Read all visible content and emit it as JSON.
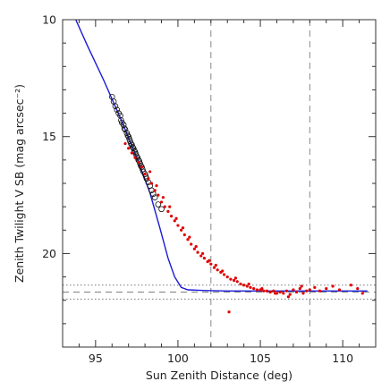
{
  "chart_data": {
    "type": "scatter",
    "xlabel": "Sun Zenith Distance (deg)",
    "ylabel": "Zenith Twilight V SB (mag arcsec⁻²)",
    "xlim": [
      93,
      112
    ],
    "ylim": [
      24,
      10
    ],
    "y_inverted": true,
    "x_ticks": [
      95,
      100,
      105,
      110
    ],
    "y_ticks": [
      10,
      15,
      20
    ],
    "grid": false,
    "vertical_reference_lines": [
      102,
      108
    ],
    "horizontal_reference_lines": [
      {
        "y": 21.35,
        "style": "dotted"
      },
      {
        "y": 21.65,
        "style": "dashed"
      },
      {
        "y": 21.95,
        "style": "dotted"
      }
    ],
    "series": [
      {
        "kind": "model_line",
        "color": "#1a1ad6",
        "x": [
          93.8,
          94.5,
          95.5,
          96.5,
          97.5,
          98.3,
          98.9,
          99.4,
          99.8,
          100.2,
          100.6,
          101.5,
          103,
          106,
          111.5
        ],
        "y": [
          10.0,
          11.1,
          12.6,
          14.2,
          15.9,
          17.4,
          18.9,
          20.2,
          21.0,
          21.45,
          21.55,
          21.58,
          21.6,
          21.6,
          21.6
        ]
      },
      {
        "kind": "open_circles",
        "color": "#111111",
        "x": [
          96.0,
          96.1,
          96.2,
          96.3,
          96.4,
          96.5,
          96.55,
          96.6,
          96.7,
          96.75,
          96.8,
          96.9,
          96.95,
          97.0,
          97.05,
          97.1,
          97.15,
          97.2,
          97.25,
          97.3,
          97.35,
          97.4,
          97.45,
          97.5,
          97.55,
          97.6,
          97.65,
          97.7,
          97.75,
          97.8,
          97.85,
          97.9,
          98.0,
          98.05,
          98.1,
          98.2,
          98.3,
          98.4,
          98.5,
          98.6,
          98.8,
          99.0
        ],
        "y": [
          13.3,
          13.5,
          13.7,
          13.85,
          14.0,
          14.1,
          14.3,
          14.4,
          14.5,
          14.65,
          14.7,
          14.85,
          14.95,
          15.0,
          15.1,
          15.2,
          15.3,
          15.35,
          15.45,
          15.5,
          15.6,
          15.65,
          15.75,
          15.85,
          15.9,
          16.0,
          16.05,
          16.15,
          16.25,
          16.3,
          16.4,
          16.5,
          16.6,
          16.7,
          16.8,
          16.95,
          17.1,
          17.3,
          17.45,
          17.6,
          17.9,
          18.1
        ]
      },
      {
        "kind": "filled_dots",
        "color": "#e00000",
        "x": [
          96.8,
          97.0,
          97.2,
          97.4,
          97.6,
          97.8,
          98.0,
          98.2,
          98.4,
          98.6,
          98.8,
          99.0,
          99.2,
          99.4,
          99.6,
          99.8,
          100.0,
          100.2,
          100.4,
          100.6,
          100.8,
          101.0,
          101.2,
          101.4,
          101.6,
          101.8,
          102.0,
          102.2,
          102.4,
          102.6,
          102.8,
          103.0,
          103.2,
          103.4,
          103.6,
          103.8,
          104.0,
          104.2,
          104.4,
          104.6,
          104.8,
          105.0,
          105.2,
          105.4,
          105.6,
          105.8,
          106.0,
          106.2,
          106.4,
          106.6,
          106.8,
          107.0,
          107.2,
          107.4,
          107.6,
          107.8,
          108.0,
          108.3,
          108.6,
          109.0,
          109.4,
          109.8,
          110.5,
          110.9,
          111.2,
          103.1,
          98.3,
          98.7,
          99.1,
          99.5,
          99.9,
          100.3,
          100.7,
          101.1,
          101.5,
          101.9,
          102.3,
          102.7,
          103.5,
          104.3,
          105.1,
          105.9,
          106.7,
          107.5
        ],
        "y": [
          15.3,
          15.5,
          15.7,
          15.9,
          16.1,
          16.3,
          16.6,
          16.8,
          17.0,
          17.3,
          17.5,
          17.8,
          18.0,
          18.2,
          18.4,
          18.6,
          18.8,
          19.0,
          19.2,
          19.4,
          19.6,
          19.8,
          19.95,
          20.1,
          20.2,
          20.35,
          20.45,
          20.6,
          20.7,
          20.8,
          20.9,
          21.0,
          21.1,
          21.15,
          21.2,
          21.3,
          21.35,
          21.4,
          21.45,
          21.5,
          21.55,
          21.55,
          21.6,
          21.6,
          21.65,
          21.6,
          21.7,
          21.65,
          21.7,
          21.6,
          21.75,
          21.55,
          21.65,
          21.5,
          21.7,
          21.6,
          21.55,
          21.45,
          21.6,
          21.5,
          21.4,
          21.55,
          21.35,
          21.5,
          21.7,
          22.5,
          16.5,
          17.1,
          17.6,
          18.0,
          18.5,
          18.9,
          19.3,
          19.7,
          20.0,
          20.3,
          20.5,
          20.75,
          21.05,
          21.3,
          21.5,
          21.7,
          21.85,
          21.4
        ]
      }
    ]
  }
}
